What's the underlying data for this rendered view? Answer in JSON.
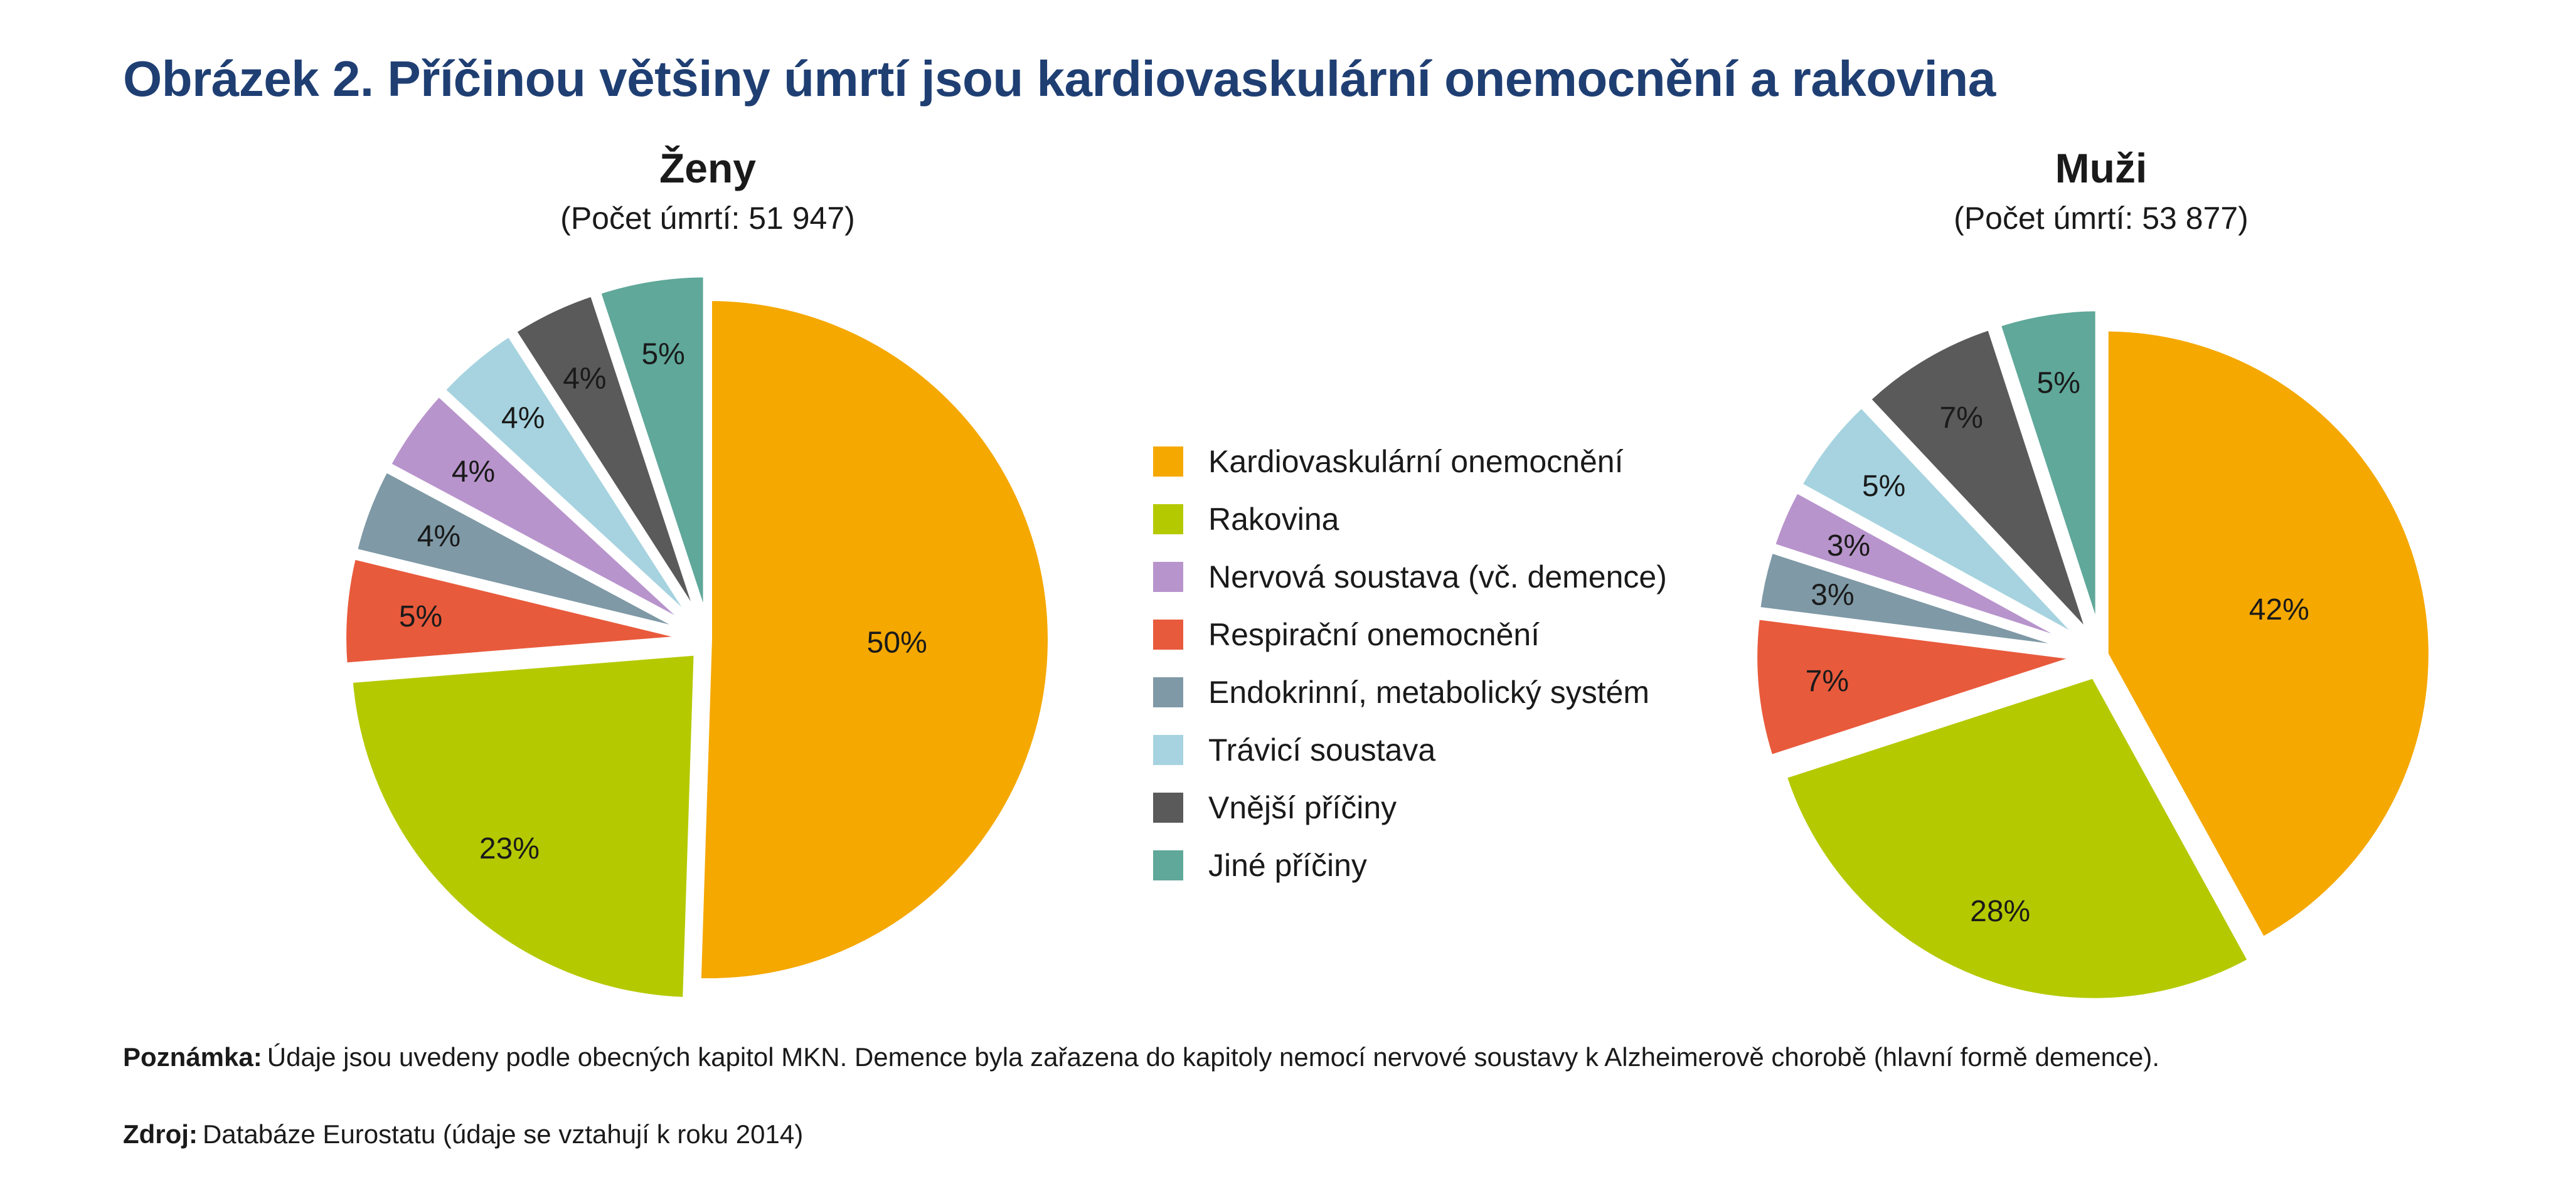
{
  "title": "Obrázek 2. Příčinou většiny úmrtí jsou kardiovaskulární onemocnění a rakovina",
  "colors": {
    "cardio": "#f5a800",
    "cancer": "#b5c900",
    "nervous": "#b894cc",
    "respiratory": "#e85a3c",
    "endocrine": "#7f99a6",
    "digestive": "#a6d3df",
    "external": "#5a5a5a",
    "other": "#5fa89a"
  },
  "legend": [
    {
      "key": "cardio",
      "label": "Kardiovaskulární onemocnění"
    },
    {
      "key": "cancer",
      "label": "Rakovina"
    },
    {
      "key": "nervous",
      "label": "Nervová soustava (vč. demence)"
    },
    {
      "key": "respiratory",
      "label": "Respirační onemocnění"
    },
    {
      "key": "endocrine",
      "label": "Endokrinní, metabolický systém"
    },
    {
      "key": "digestive",
      "label": "Trávicí soustava"
    },
    {
      "key": "external",
      "label": "Vnější příčiny"
    },
    {
      "key": "other",
      "label": "Jiné příčiny"
    }
  ],
  "chart_data": [
    {
      "type": "pie",
      "title": "Ženy",
      "subtitle": "(Počet úmrtí: 51 947)",
      "categories": [
        "Kardiovaskulární onemocnění",
        "Rakovina",
        "Respirační onemocnění",
        "Endokrinní, metabolický systém",
        "Nervová soustava (vč. demence)",
        "Trávicí soustava",
        "Vnější příčiny",
        "Jiné příčiny"
      ],
      "keys": [
        "cardio",
        "cancer",
        "respiratory",
        "endocrine",
        "nervous",
        "digestive",
        "external",
        "other"
      ],
      "values": [
        50,
        23,
        5,
        4,
        4,
        4,
        4,
        5
      ],
      "labels": [
        "50%",
        "23%",
        "5%",
        "4%",
        "4%",
        "4%",
        "4%",
        "5%"
      ]
    },
    {
      "type": "pie",
      "title": "Muži",
      "subtitle": "(Počet úmrtí: 53 877)",
      "categories": [
        "Kardiovaskulární onemocnění",
        "Rakovina",
        "Respirační onemocnění",
        "Endokrinní, metabolický systém",
        "Nervová soustava (vč. demence)",
        "Trávicí soustava",
        "Vnější příčiny",
        "Jiné příčiny"
      ],
      "keys": [
        "cardio",
        "cancer",
        "respiratory",
        "endocrine",
        "nervous",
        "digestive",
        "external",
        "other"
      ],
      "values": [
        42,
        28,
        7,
        3,
        3,
        5,
        7,
        5
      ],
      "labels": [
        "42%",
        "28%",
        "7%",
        "3%",
        "3%",
        "5%",
        "7%",
        "5%"
      ]
    }
  ],
  "notes": {
    "note_label": "Poznámka:",
    "note_text": "Údaje jsou uvedeny podle obecných kapitol MKN. Demence byla zařazena do kapitoly  nemocí nervové soustavy k Alzheimerově chorobě (hlavní formě demence).",
    "source_label": "Zdroj:",
    "source_text": "Databáze Eurostatu (údaje se vztahují k roku 2014)"
  }
}
